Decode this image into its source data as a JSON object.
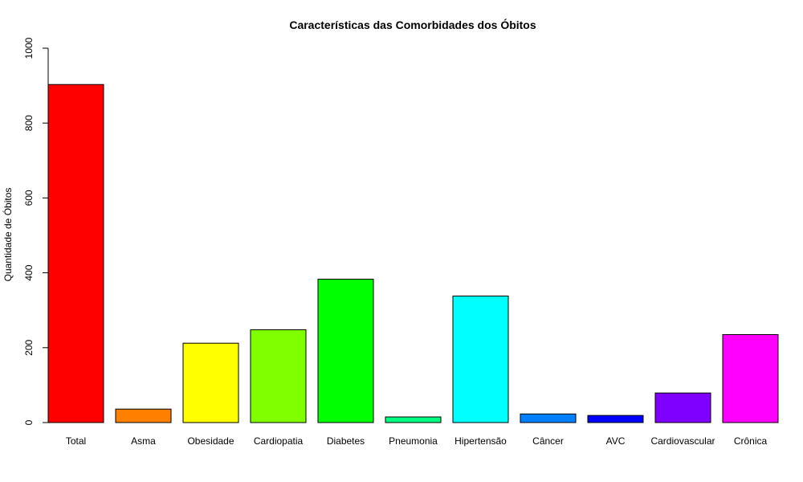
{
  "chart_data": {
    "type": "bar",
    "title": "Características das Comorbidades dos Óbitos",
    "xlabel": "",
    "ylabel": "Quantidade de Óbitos",
    "ylim": [
      0,
      1000
    ],
    "yticks": [
      0,
      200,
      400,
      600,
      800,
      1000
    ],
    "grid": false,
    "categories": [
      "Total",
      "Asma",
      "Obesidade",
      "Cardiopatia",
      "Diabetes",
      "Pneumonia",
      "Hipertensão",
      "Câncer",
      "AVC",
      "Cardiovascular",
      "Crônica"
    ],
    "values": [
      903,
      36,
      212,
      248,
      383,
      15,
      338,
      23,
      19,
      79,
      235
    ],
    "colors": [
      "#FF0000",
      "#FF8000",
      "#FFFF00",
      "#80FF00",
      "#00FF00",
      "#00FF80",
      "#00FFFF",
      "#0080FF",
      "#0000FF",
      "#8000FF",
      "#FF00FF"
    ]
  }
}
